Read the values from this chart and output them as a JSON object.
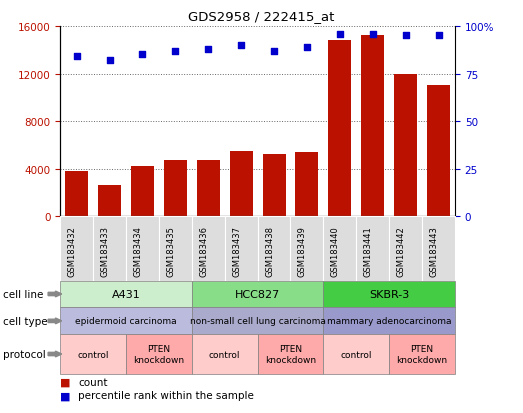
{
  "title": "GDS2958 / 222415_at",
  "samples": [
    "GSM183432",
    "GSM183433",
    "GSM183434",
    "GSM183435",
    "GSM183436",
    "GSM183437",
    "GSM183438",
    "GSM183439",
    "GSM183440",
    "GSM183441",
    "GSM183442",
    "GSM183443"
  ],
  "counts": [
    3800,
    2600,
    4200,
    4700,
    4700,
    5500,
    5200,
    5400,
    14800,
    15200,
    12000,
    11000
  ],
  "percentiles": [
    84,
    82,
    85,
    87,
    88,
    90,
    87,
    89,
    96,
    96,
    95,
    95
  ],
  "ylim_left": [
    0,
    16000
  ],
  "ylim_right": [
    0,
    100
  ],
  "yticks_left": [
    0,
    4000,
    8000,
    12000,
    16000
  ],
  "yticks_right": [
    0,
    25,
    50,
    75,
    100
  ],
  "ytick_labels_right": [
    "0",
    "25",
    "50",
    "75",
    "100%"
  ],
  "bar_color": "#bb1100",
  "dot_color": "#0000cc",
  "cell_line_groups": [
    {
      "label": "A431",
      "start": 0,
      "end": 4,
      "color": "#cceecc"
    },
    {
      "label": "HCC827",
      "start": 4,
      "end": 8,
      "color": "#88dd88"
    },
    {
      "label": "SKBR-3",
      "start": 8,
      "end": 12,
      "color": "#44cc44"
    }
  ],
  "cell_type_groups": [
    {
      "label": "epidermoid carcinoma",
      "start": 0,
      "end": 4,
      "color": "#bbbbdd"
    },
    {
      "label": "non-small cell lung carcinoma",
      "start": 4,
      "end": 8,
      "color": "#aaaacc"
    },
    {
      "label": "mammary adenocarcinoma",
      "start": 8,
      "end": 12,
      "color": "#9999cc"
    }
  ],
  "protocol_groups": [
    {
      "label": "control",
      "start": 0,
      "end": 2,
      "color": "#ffcccc"
    },
    {
      "label": "PTEN\nknockdown",
      "start": 2,
      "end": 4,
      "color": "#ffaaaa"
    },
    {
      "label": "control",
      "start": 4,
      "end": 6,
      "color": "#ffcccc"
    },
    {
      "label": "PTEN\nknockdown",
      "start": 6,
      "end": 8,
      "color": "#ffaaaa"
    },
    {
      "label": "control",
      "start": 8,
      "end": 10,
      "color": "#ffcccc"
    },
    {
      "label": "PTEN\nknockdown",
      "start": 10,
      "end": 12,
      "color": "#ffaaaa"
    }
  ],
  "legend_count_color": "#bb1100",
  "legend_percentile_color": "#0000cc",
  "row_labels": [
    "cell line",
    "cell type",
    "protocol"
  ],
  "background_color": "#ffffff",
  "grid_color": "#666666",
  "xtick_bg": "#dddddd"
}
